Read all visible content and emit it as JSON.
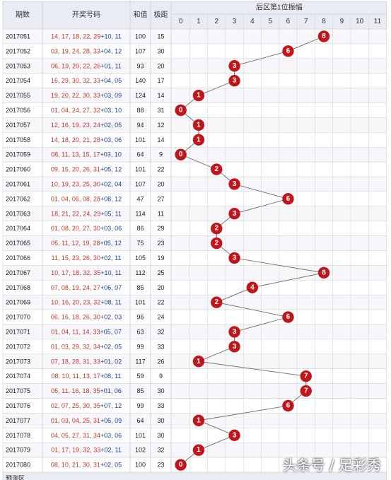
{
  "headers": {
    "issue": "期数",
    "numbers": "开奖号码",
    "sum": "和值",
    "span": "极距",
    "amplitude": "后区第1位振幅"
  },
  "chart_data": {
    "type": "line",
    "x_labels": [
      "0",
      "1",
      "2",
      "3",
      "4",
      "5",
      "6",
      "7",
      "8",
      "9",
      "10",
      "11"
    ],
    "rows": [
      {
        "issue": "2017051",
        "front": "14, 17, 18, 22, 29",
        "back": "10, 11",
        "sum": "100",
        "span": "15",
        "amp": 8
      },
      {
        "issue": "2017052",
        "front": "03, 19, 24, 28, 33",
        "back": "04, 12",
        "sum": "107",
        "span": "30",
        "amp": 6
      },
      {
        "issue": "2017053",
        "front": "06, 19, 20, 22, 26",
        "back": "01, 11",
        "sum": "93",
        "span": "20",
        "amp": 3
      },
      {
        "issue": "2017054",
        "front": "16, 29, 30, 32, 33",
        "back": "04, 05",
        "sum": "140",
        "span": "17",
        "amp": 3
      },
      {
        "issue": "2017055",
        "front": "19, 20, 22, 30, 33",
        "back": "03, 09",
        "sum": "124",
        "span": "14",
        "amp": 1
      },
      {
        "issue": "2017056",
        "front": "01, 04, 24, 27, 32",
        "back": "03, 10",
        "sum": "88",
        "span": "31",
        "amp": 0
      },
      {
        "issue": "2017057",
        "front": "12, 16, 19, 23, 24",
        "back": "02, 05",
        "sum": "94",
        "span": "12",
        "amp": 1
      },
      {
        "issue": "2017058",
        "front": "14, 18, 20, 21, 28",
        "back": "03, 06",
        "sum": "101",
        "span": "14",
        "amp": 1
      },
      {
        "issue": "2017059",
        "front": "08, 11, 13, 15, 17",
        "back": "03, 10",
        "sum": "64",
        "span": "9",
        "amp": 0
      },
      {
        "issue": "2017060",
        "front": "09, 15, 20, 26, 31",
        "back": "05, 12",
        "sum": "101",
        "span": "22",
        "amp": 2
      },
      {
        "issue": "2017061",
        "front": "10, 19, 23, 25, 30",
        "back": "02, 04",
        "sum": "107",
        "span": "20",
        "amp": 3
      },
      {
        "issue": "2017062",
        "front": "01, 04, 06, 08, 28",
        "back": "08, 12",
        "sum": "47",
        "span": "27",
        "amp": 6
      },
      {
        "issue": "2017063",
        "front": "18, 21, 22, 24, 29",
        "back": "05, 11",
        "sum": "114",
        "span": "11",
        "amp": 3
      },
      {
        "issue": "2017064",
        "front": "01, 08, 20, 27, 30",
        "back": "03, 06",
        "sum": "86",
        "span": "29",
        "amp": 2
      },
      {
        "issue": "2017065",
        "front": "05, 11, 12, 19, 28",
        "back": "05, 12",
        "sum": "75",
        "span": "23",
        "amp": 2
      },
      {
        "issue": "2017066",
        "front": "11, 15, 23, 26, 30",
        "back": "02, 11",
        "sum": "105",
        "span": "19",
        "amp": 3
      },
      {
        "issue": "2017067",
        "front": "10, 17, 18, 32, 35",
        "back": "10, 11",
        "sum": "112",
        "span": "25",
        "amp": 8
      },
      {
        "issue": "2017068",
        "front": "07, 08, 19, 24, 27",
        "back": "06, 07",
        "sum": "85",
        "span": "20",
        "amp": 4
      },
      {
        "issue": "2017069",
        "front": "10, 16, 20, 23, 32",
        "back": "08, 11",
        "sum": "101",
        "span": "22",
        "amp": 2
      },
      {
        "issue": "2017070",
        "front": "06, 16, 18, 26, 30",
        "back": "02, 03",
        "sum": "96",
        "span": "24",
        "amp": 6
      },
      {
        "issue": "2017071",
        "front": "01, 04, 11, 14, 33",
        "back": "05, 07",
        "sum": "63",
        "span": "32",
        "amp": 3
      },
      {
        "issue": "2017072",
        "front": "01, 03, 29, 32, 34",
        "back": "02, 05",
        "sum": "99",
        "span": "33",
        "amp": 3
      },
      {
        "issue": "2017073",
        "front": "07, 18, 28, 31, 33",
        "back": "01, 02",
        "sum": "117",
        "span": "26",
        "amp": 1
      },
      {
        "issue": "2017074",
        "front": "08, 10, 11, 13, 17",
        "back": "08, 11",
        "sum": "59",
        "span": "9",
        "amp": 7
      },
      {
        "issue": "2017075",
        "front": "05, 11, 16, 18, 35",
        "back": "01, 06",
        "sum": "85",
        "span": "30",
        "amp": 7
      },
      {
        "issue": "2017076",
        "front": "02, 07, 25, 30, 35",
        "back": "07, 12",
        "sum": "99",
        "span": "33",
        "amp": 6
      },
      {
        "issue": "2017077",
        "front": "01, 03, 04, 25, 31",
        "back": "06, 09",
        "sum": "64",
        "span": "30",
        "amp": 1
      },
      {
        "issue": "2017078",
        "front": "04, 05, 27, 31, 34",
        "back": "03, 06",
        "sum": "101",
        "span": "30",
        "amp": 3
      },
      {
        "issue": "2017079",
        "front": "01, 17, 19, 32, 33",
        "back": "02, 11",
        "sum": "102",
        "span": "32",
        "amp": 1
      },
      {
        "issue": "2017080",
        "front": "08, 10, 21, 30, 31",
        "back": "02, 05",
        "sum": "100",
        "span": "23",
        "amp": 0
      }
    ]
  },
  "footer_label": "预测区",
  "watermark": "头条号 / 足彩秀",
  "colors": {
    "header_bg": "#e9ecf4",
    "row_bg_a": "#f7f7fb",
    "row_bg_b": "#ffffff",
    "issue_text": "#222222",
    "front_text": "#c0392b",
    "back_text": "#1f3f99",
    "ball": "#c0161b",
    "line": "#777777",
    "grid": "#d6d6d6",
    "miss_text": "#b8b8b8"
  }
}
